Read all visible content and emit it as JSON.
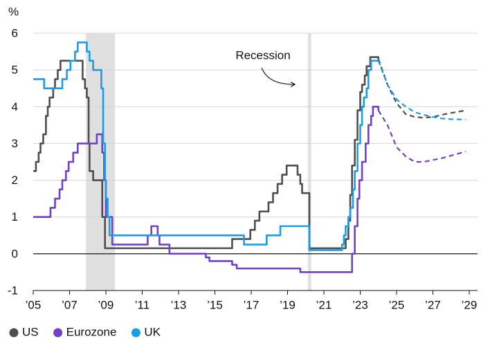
{
  "chart_data": {
    "type": "line",
    "y_label": "%",
    "step": true,
    "grid": true,
    "xlim": [
      2005,
      2029
    ],
    "ylim": [
      -1,
      6
    ],
    "yticks": [
      -1,
      0,
      1,
      2,
      3,
      4,
      5,
      6
    ],
    "xticks": [
      {
        "value": 2005,
        "label": "’05"
      },
      {
        "value": 2007,
        "label": "’07"
      },
      {
        "value": 2009,
        "label": "’09"
      },
      {
        "value": 2011,
        "label": "’11"
      },
      {
        "value": 2013,
        "label": "’13"
      },
      {
        "value": 2015,
        "label": "’15"
      },
      {
        "value": 2017,
        "label": "’17"
      },
      {
        "value": 2019,
        "label": "’19"
      },
      {
        "value": 2021,
        "label": "’21"
      },
      {
        "value": 2023,
        "label": "’23"
      },
      {
        "value": 2025,
        "label": "’25"
      },
      {
        "value": 2027,
        "label": "’27"
      },
      {
        "value": 2029,
        "label": "’29"
      }
    ],
    "recessions": [
      [
        2007.9,
        2009.5
      ],
      [
        2020.12,
        2020.3
      ]
    ],
    "recession_color": "#e0e0e0",
    "annotation": "Recession",
    "series": [
      {
        "name": "US",
        "color": "#4d4d4d",
        "x": [
          2005.0,
          2005.15,
          2005.3,
          2005.4,
          2005.55,
          2005.7,
          2005.8,
          2005.9,
          2006.1,
          2006.2,
          2006.35,
          2006.5,
          2007.72,
          2007.85,
          2007.95,
          2008.05,
          2008.1,
          2008.3,
          2008.8,
          2008.95,
          2015.95,
          2016.95,
          2017.2,
          2017.45,
          2017.95,
          2018.2,
          2018.45,
          2018.7,
          2018.95,
          2019.55,
          2019.7,
          2019.8,
          2020.2,
          2022.2,
          2022.35,
          2022.45,
          2022.55,
          2022.7,
          2022.85,
          2023.0,
          2023.1,
          2023.25,
          2023.35,
          2023.55,
          2024.0
        ],
        "values": [
          2.25,
          2.5,
          2.75,
          3.0,
          3.25,
          3.75,
          4.0,
          4.25,
          4.5,
          4.75,
          5.0,
          5.25,
          4.75,
          4.5,
          4.25,
          3.0,
          2.25,
          2.0,
          1.0,
          0.15,
          0.4,
          0.65,
          0.9,
          1.15,
          1.4,
          1.65,
          1.9,
          2.15,
          2.4,
          2.15,
          1.9,
          1.65,
          0.15,
          0.4,
          0.9,
          1.6,
          2.4,
          3.1,
          3.9,
          4.4,
          4.6,
          4.85,
          5.1,
          5.35,
          5.3
        ],
        "forecast_x": [
          2024.0,
          2024.5,
          2025.0,
          2025.5,
          2026.0,
          2026.5,
          2027.0,
          2027.5,
          2028.0,
          2028.8
        ],
        "forecast_values": [
          5.3,
          4.6,
          4.1,
          3.8,
          3.72,
          3.7,
          3.72,
          3.78,
          3.83,
          3.9
        ]
      },
      {
        "name": "Eurozone",
        "color": "#7040c8",
        "x": [
          2005.0,
          2005.95,
          2006.2,
          2006.45,
          2006.6,
          2006.8,
          2006.95,
          2007.2,
          2007.45,
          2008.5,
          2008.8,
          2008.9,
          2009.0,
          2009.35,
          2011.3,
          2011.5,
          2011.85,
          2011.95,
          2012.5,
          2014.5,
          2014.7,
          2015.95,
          2016.2,
          2019.7,
          2022.55,
          2022.7,
          2022.85,
          2022.95,
          2023.1,
          2023.3,
          2023.45,
          2023.6,
          2023.7,
          2024.0
        ],
        "values": [
          1.0,
          1.25,
          1.5,
          1.75,
          2.0,
          2.25,
          2.5,
          2.75,
          3.0,
          3.25,
          2.75,
          2.0,
          1.0,
          0.25,
          0.5,
          0.75,
          0.5,
          0.25,
          0.0,
          -0.1,
          -0.2,
          -0.3,
          -0.4,
          -0.5,
          0.0,
          0.75,
          1.5,
          2.0,
          2.5,
          3.0,
          3.5,
          3.75,
          4.0,
          3.9
        ],
        "forecast_x": [
          2024.0,
          2024.5,
          2025.0,
          2025.5,
          2026.0,
          2026.5,
          2027.0,
          2027.5,
          2028.0,
          2028.8
        ],
        "forecast_values": [
          3.9,
          3.5,
          2.9,
          2.65,
          2.5,
          2.5,
          2.55,
          2.6,
          2.67,
          2.78
        ]
      },
      {
        "name": "UK",
        "color": "#1a9de8",
        "x": [
          2005.0,
          2005.6,
          2006.6,
          2006.85,
          2007.05,
          2007.3,
          2007.45,
          2007.95,
          2008.1,
          2008.3,
          2008.75,
          2008.85,
          2008.95,
          2009.0,
          2009.1,
          2009.2,
          2016.6,
          2017.85,
          2018.6,
          2020.2,
          2022.0,
          2022.1,
          2022.2,
          2022.35,
          2022.45,
          2022.6,
          2022.7,
          2022.85,
          2023.0,
          2023.1,
          2023.2,
          2023.35,
          2023.45,
          2023.6,
          2024.0
        ],
        "values": [
          4.75,
          4.5,
          4.75,
          5.0,
          5.25,
          5.5,
          5.75,
          5.5,
          5.25,
          5.0,
          4.5,
          3.0,
          2.0,
          1.5,
          1.0,
          0.5,
          0.25,
          0.5,
          0.75,
          0.1,
          0.25,
          0.5,
          0.75,
          1.0,
          1.25,
          1.75,
          2.25,
          3.0,
          3.5,
          4.0,
          4.25,
          4.5,
          5.0,
          5.25,
          5.25
        ],
        "forecast_x": [
          2024.0,
          2024.5,
          2025.0,
          2025.5,
          2026.0,
          2026.5,
          2027.0,
          2027.5,
          2028.0,
          2028.8
        ],
        "forecast_values": [
          5.25,
          4.6,
          4.2,
          4.0,
          3.85,
          3.78,
          3.72,
          3.68,
          3.66,
          3.65
        ]
      }
    ]
  }
}
